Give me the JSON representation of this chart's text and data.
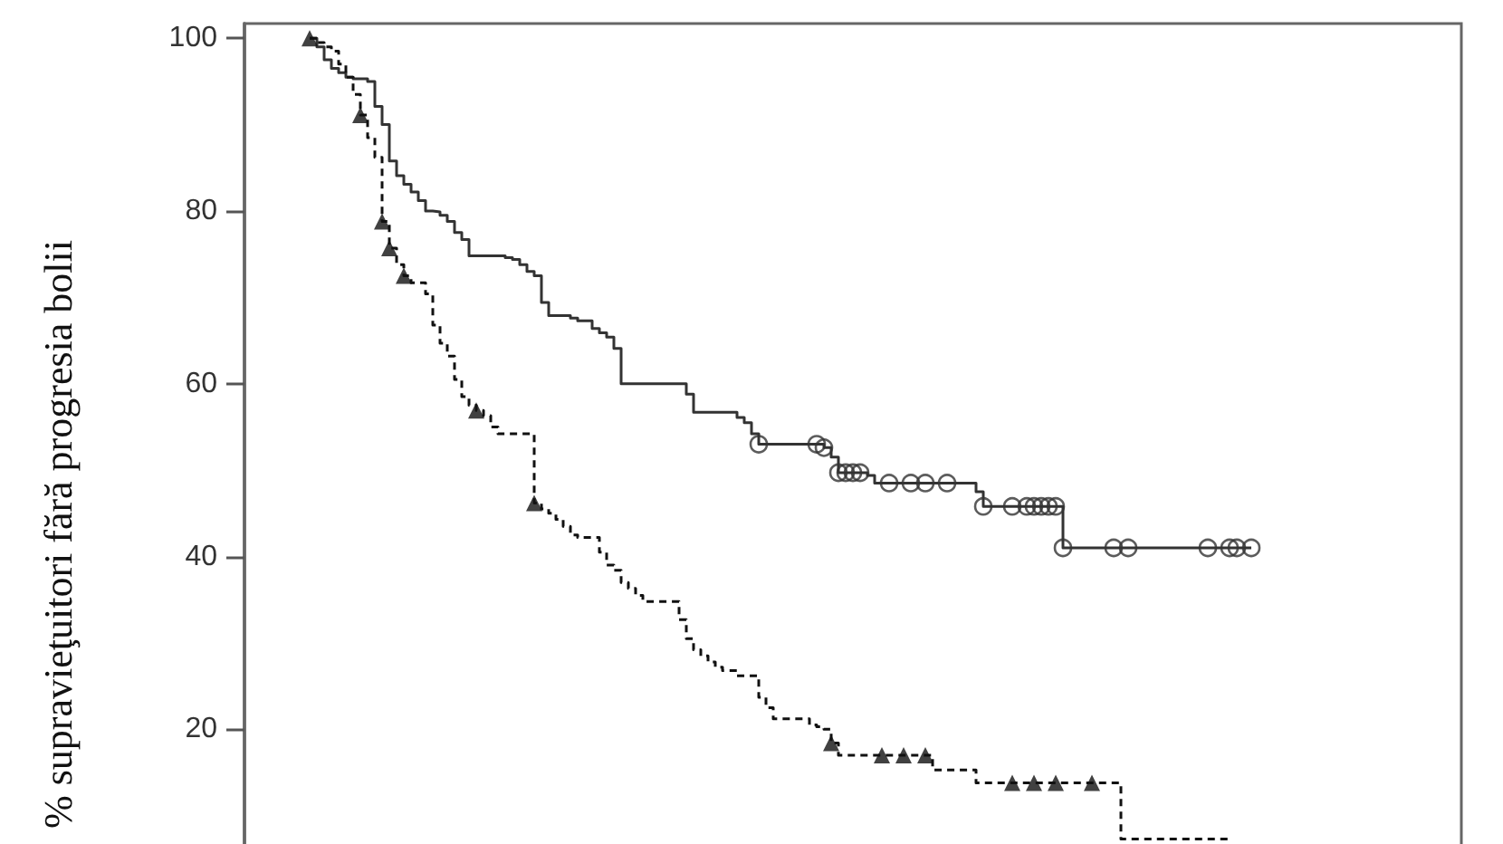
{
  "chart_data": {
    "type": "step",
    "ylabel": "% supravieţuitori fără progresia bolii",
    "categories": [
      null,
      null,
      null,
      null,
      null,
      null,
      null,
      null,
      null,
      null,
      null,
      null,
      null,
      null,
      null,
      null,
      null,
      null,
      null,
      null,
      null,
      null,
      null,
      null,
      null,
      null,
      null,
      null,
      null,
      null,
      null,
      null,
      null,
      null,
      null,
      null,
      null,
      null,
      null,
      null,
      null,
      null,
      null,
      null,
      null,
      null,
      null,
      null,
      null,
      null,
      null,
      null,
      null,
      null,
      null,
      null,
      null,
      null,
      null,
      null,
      null,
      null,
      null,
      null,
      null,
      null,
      null,
      null,
      null,
      null,
      null,
      null,
      null,
      null,
      null,
      null,
      null,
      null,
      null,
      null,
      null,
      null,
      null,
      null,
      null,
      null,
      null,
      null,
      null,
      null,
      null,
      null,
      null,
      null,
      null,
      null,
      null,
      null,
      null,
      null,
      null,
      null,
      null,
      null,
      null,
      null,
      null,
      null,
      null,
      null,
      null,
      null,
      null,
      null,
      null,
      null,
      null,
      null,
      null,
      null,
      null,
      null,
      null,
      null,
      null,
      null,
      null,
      null,
      null,
      null,
      null
    ],
    "ylim": [
      6.3,
      101.7
    ],
    "yticks": [
      20,
      40,
      60,
      80,
      100
    ],
    "series": [
      {
        "color": "#333333",
        "line_style": "solid",
        "values": [
          100,
          99,
          97.5,
          96.5,
          96,
          95.5,
          95.3,
          95.3,
          95,
          92.1,
          90,
          85.8,
          84.1,
          83.1,
          82.2,
          81.2,
          80,
          79.9,
          79.5,
          78.8,
          77.5,
          76.7,
          74.8,
          74.8,
          74.8,
          74.8,
          74.8,
          74.6,
          74.4,
          73.8,
          73,
          72.5,
          69.4,
          67.9,
          67.9,
          67.9,
          67.6,
          67.3,
          67.3,
          66.4,
          65.9,
          65.4,
          64.1,
          60,
          60,
          60,
          60,
          60,
          60,
          60,
          60,
          60,
          58.8,
          56.7,
          56.7,
          56.7,
          56.7,
          56.7,
          56.7,
          56.1,
          55.5,
          54.2,
          53,
          53,
          53,
          53,
          53,
          53,
          53,
          53,
          53,
          52.6,
          51.5,
          49.7,
          49.7,
          49.7,
          49.7,
          49.4,
          48.5,
          48.5,
          48.5,
          48.5,
          48.5,
          48.5,
          48.5,
          48.5,
          48.5,
          48.5,
          48.5,
          48.5,
          48.5,
          48.5,
          47.5,
          45.8,
          45.8,
          45.8,
          45.8,
          45.8,
          45.8,
          45.8,
          45.8,
          45.8,
          45.8,
          45.8,
          41,
          41,
          41,
          41,
          41,
          41,
          41,
          41,
          41,
          41,
          41,
          41,
          41,
          41,
          41,
          41,
          41,
          41,
          41,
          41,
          41,
          41,
          41,
          41,
          41,
          41,
          41
        ]
      },
      {
        "color": "#111111",
        "line_style": "dashed",
        "values": [
          100,
          99.5,
          99,
          98.5,
          97,
          95.5,
          93.5,
          91.1,
          88.5,
          86.2,
          78.8,
          75.7,
          73.8,
          72.5,
          71.7,
          71.7,
          70.4,
          66.8,
          64.7,
          63.2,
          60.5,
          58.5,
          57.5,
          56.9,
          56.3,
          55,
          54.2,
          54.2,
          54.2,
          54.2,
          54.2,
          46.2,
          45.5,
          45,
          44.3,
          43.5,
          42.5,
          42.2,
          42.2,
          42.2,
          40.5,
          39,
          38.4,
          37,
          36.3,
          35.5,
          34.8,
          34.8,
          34.8,
          34.8,
          34.8,
          32.7,
          30.5,
          29.2,
          28.5,
          27.8,
          27.2,
          26.8,
          26.8,
          26.2,
          26.2,
          26.2,
          23.7,
          22.5,
          21.2,
          21.2,
          21.2,
          21.2,
          21.2,
          20.5,
          20.3,
          20,
          18.4,
          17,
          17,
          17,
          17,
          17,
          17,
          17,
          17,
          17,
          17,
          17,
          17,
          17,
          15.3,
          15.3,
          15.3,
          15.3,
          15.3,
          15.3,
          13.8,
          13.8,
          13.8,
          13.8,
          13.8,
          13.8,
          13.8,
          13.8,
          13.8,
          13.8,
          13.8,
          13.8,
          13.8,
          13.8,
          13.8,
          13.8,
          13.8,
          13.8,
          13.8,
          13.8,
          7.3,
          7.3,
          7.3,
          7.3,
          7.3,
          7.3,
          7.3,
          7.3,
          7.3,
          7.3,
          7.3,
          7.3,
          7.3,
          7.3,
          7.3,
          7.3,
          null,
          null,
          null
        ]
      },
      {
        "type": "scatter",
        "marker": "circle",
        "color": "#333333",
        "values": [
          null,
          null,
          null,
          null,
          null,
          null,
          null,
          null,
          null,
          null,
          null,
          null,
          null,
          null,
          null,
          null,
          null,
          null,
          null,
          null,
          null,
          null,
          null,
          null,
          null,
          null,
          null,
          null,
          null,
          null,
          null,
          null,
          null,
          null,
          null,
          null,
          null,
          null,
          null,
          null,
          null,
          null,
          null,
          null,
          null,
          null,
          null,
          null,
          null,
          null,
          null,
          null,
          null,
          null,
          null,
          null,
          null,
          null,
          null,
          null,
          null,
          null,
          53,
          null,
          null,
          null,
          null,
          null,
          null,
          null,
          53,
          52.6,
          null,
          49.7,
          49.7,
          49.7,
          49.7,
          null,
          null,
          null,
          48.5,
          null,
          null,
          48.5,
          null,
          48.5,
          null,
          null,
          48.5,
          null,
          null,
          null,
          null,
          45.8,
          null,
          null,
          null,
          45.8,
          null,
          45.8,
          45.8,
          45.8,
          45.8,
          45.8,
          41,
          null,
          null,
          null,
          null,
          null,
          null,
          41,
          null,
          41,
          null,
          null,
          null,
          null,
          null,
          null,
          null,
          null,
          null,
          null,
          41,
          null,
          null,
          41,
          41,
          null,
          41
        ]
      },
      {
        "type": "scatter",
        "marker": "triangle",
        "color": "#111111",
        "values": [
          100,
          null,
          null,
          null,
          null,
          null,
          null,
          91.1,
          null,
          null,
          78.8,
          75.7,
          null,
          72.5,
          null,
          null,
          null,
          null,
          null,
          null,
          null,
          null,
          null,
          56.9,
          null,
          null,
          null,
          null,
          null,
          null,
          null,
          46.2,
          null,
          null,
          null,
          null,
          null,
          null,
          null,
          null,
          null,
          null,
          null,
          null,
          null,
          null,
          null,
          null,
          null,
          null,
          null,
          null,
          null,
          null,
          null,
          null,
          null,
          null,
          null,
          null,
          null,
          null,
          null,
          null,
          null,
          null,
          null,
          null,
          null,
          null,
          null,
          null,
          18.4,
          null,
          null,
          null,
          null,
          null,
          null,
          17,
          null,
          null,
          17,
          null,
          null,
          17,
          null,
          null,
          null,
          null,
          null,
          null,
          null,
          null,
          null,
          null,
          null,
          13.8,
          null,
          null,
          13.8,
          null,
          null,
          13.8,
          null,
          null,
          null,
          null,
          13.8,
          null,
          null,
          null,
          null,
          null,
          null,
          null,
          null,
          null,
          null,
          null,
          null,
          null,
          null,
          null,
          null,
          null,
          null,
          null,
          null,
          null,
          null
        ]
      }
    ]
  }
}
